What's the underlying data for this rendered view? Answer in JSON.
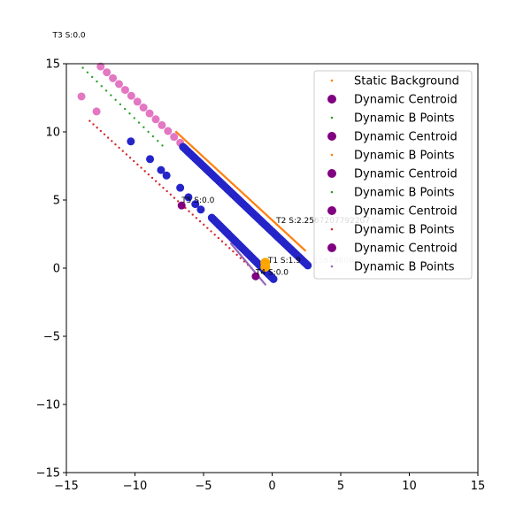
{
  "chart_data": {
    "type": "scatter",
    "title": "",
    "xlabel": "",
    "ylabel": "",
    "xlim": [
      -15,
      15
    ],
    "ylim": [
      -15,
      15
    ],
    "xticks": [
      -15,
      -10,
      -5,
      0,
      5,
      10,
      15
    ],
    "yticks": [
      -15,
      -10,
      -5,
      0,
      5,
      10,
      15
    ],
    "xtick_labels": [
      "−15",
      "−10",
      "−5",
      "0",
      "5",
      "10",
      "15"
    ],
    "ytick_labels": [
      "−15",
      "−10",
      "−5",
      "0",
      "5",
      "10",
      "15"
    ],
    "grid": false,
    "legend_placement": "top-right",
    "legend": [
      {
        "label": "Static Background",
        "color": "#ff7f0e",
        "marker": "small"
      },
      {
        "label": "Dynamic Centroid",
        "color": "#800080",
        "marker": "large"
      },
      {
        "label": "Dynamic B Points",
        "color": "#2ca02c",
        "marker": "small"
      },
      {
        "label": "Dynamic Centroid",
        "color": "#800080",
        "marker": "large"
      },
      {
        "label": "Dynamic B Points",
        "color": "#ff7f0e",
        "marker": "small"
      },
      {
        "label": "Dynamic Centroid",
        "color": "#800080",
        "marker": "large"
      },
      {
        "label": "Dynamic B Points",
        "color": "#2ca02c",
        "marker": "small"
      },
      {
        "label": "Dynamic Centroid",
        "color": "#800080",
        "marker": "large"
      },
      {
        "label": "Dynamic B Points",
        "color": "#d62728",
        "marker": "small"
      },
      {
        "label": "Dynamic Centroid",
        "color": "#800080",
        "marker": "large"
      },
      {
        "label": "Dynamic B Points",
        "color": "#9467bd",
        "marker": "small"
      }
    ],
    "annotations": [
      {
        "text": "T3 S:0.0",
        "x": -16.0,
        "y": 16.9,
        "faint": false
      },
      {
        "text": "T2 S:2.2567207792207",
        "x": 0.3,
        "y": 3.3,
        "faint": false
      },
      {
        "text": "68",
        "x": 7.3,
        "y": 3.3,
        "faint": true
      },
      {
        "text": "T1 S:1.9",
        "x": -0.3,
        "y": 0.4,
        "faint": false
      },
      {
        "text": "1587960866",
        "x": 3.0,
        "y": 0.4,
        "faint": true
      },
      {
        "text": "T5 S:0.0",
        "x": -6.6,
        "y": 4.8,
        "faint": false
      },
      {
        "text": "T4 S:0.0",
        "x": -1.2,
        "y": -0.5,
        "faint": false
      }
    ],
    "series": [
      {
        "name": "Static Background",
        "kind": "line_points",
        "color": "#ff7f0e",
        "size": 1.2,
        "from": [
          -7.0,
          10.0
        ],
        "to": [
          2.4,
          1.3
        ],
        "n": 140
      },
      {
        "name": "Dynamic B Points",
        "kind": "line_points",
        "color": "#2ca02c",
        "size": 1.2,
        "from": [
          -13.8,
          14.7
        ],
        "to": [
          -8.0,
          9.0
        ],
        "n": 18
      },
      {
        "name": "Dynamic B Points",
        "kind": "line_points",
        "color": "#d62728",
        "size": 1.2,
        "from": [
          -13.3,
          10.8
        ],
        "to": [
          -1.5,
          0.0
        ],
        "n": 45
      },
      {
        "name": "Dynamic B Points",
        "kind": "line_points",
        "color": "#9467bd",
        "size": 1.2,
        "from": [
          -3.0,
          1.8
        ],
        "to": [
          -0.5,
          -1.2
        ],
        "n": 40
      },
      {
        "name": "Dynamic Centroid",
        "kind": "line_points",
        "color": "#e377c2",
        "size": 4.5,
        "from": [
          -12.5,
          14.8
        ],
        "to": [
          -6.7,
          9.2
        ],
        "n": 14
      },
      {
        "name": "Dynamic Centroid",
        "kind": "points",
        "color": "#e377c2",
        "size": 4.5,
        "points": [
          [
            -13.9,
            12.6
          ],
          [
            -12.8,
            11.5
          ]
        ]
      },
      {
        "name": "Dynamic Centroid",
        "kind": "line_points",
        "color": "#2424c8",
        "size": 4.5,
        "from": [
          -6.5,
          8.9
        ],
        "to": [
          2.6,
          0.2
        ],
        "n": 95
      },
      {
        "name": "Dynamic Centroid",
        "kind": "line_points",
        "color": "#2424c8",
        "size": 4.5,
        "from": [
          -4.4,
          3.7
        ],
        "to": [
          0.1,
          -0.8
        ],
        "n": 45
      },
      {
        "name": "Dynamic Centroid",
        "kind": "points",
        "color": "#2424c8",
        "size": 4.5,
        "points": [
          [
            -10.3,
            9.3
          ],
          [
            -8.9,
            8.0
          ],
          [
            -8.1,
            7.2
          ],
          [
            -7.7,
            6.8
          ],
          [
            -6.7,
            5.9
          ],
          [
            -6.1,
            5.2
          ],
          [
            -5.6,
            4.7
          ],
          [
            -5.2,
            4.3
          ]
        ]
      },
      {
        "name": "Dynamic Centroid",
        "kind": "points",
        "color": "#800080",
        "size": 4.5,
        "points": [
          [
            -6.6,
            4.6
          ],
          [
            -1.2,
            -0.6
          ]
        ]
      },
      {
        "name": "Dynamic Centroid",
        "kind": "points",
        "color": "#ffa500",
        "size": 5.5,
        "points": [
          [
            -0.5,
            0.1
          ],
          [
            -0.5,
            0.4
          ]
        ]
      }
    ]
  }
}
